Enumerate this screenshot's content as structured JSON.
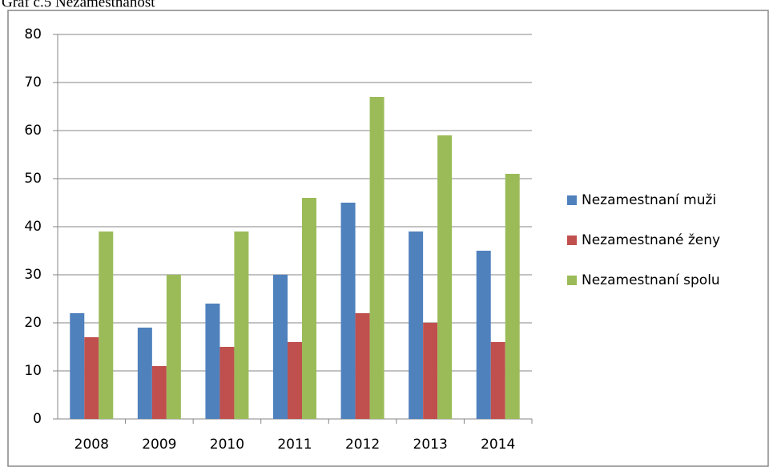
{
  "chart_data": {
    "type": "bar",
    "title": "Graf č.5 Nezamestnanosť",
    "categories": [
      "2008",
      "2009",
      "2010",
      "2011",
      "2012",
      "2013",
      "2014"
    ],
    "series": [
      {
        "name": "Nezamestnaní muži",
        "color": "#4f81bd",
        "values": [
          22,
          19,
          24,
          30,
          45,
          39,
          35
        ]
      },
      {
        "name": "Nezamestnané ženy",
        "color": "#c0504d",
        "values": [
          17,
          11,
          15,
          16,
          22,
          20,
          16
        ]
      },
      {
        "name": "Nezamestnaní spolu",
        "color": "#9bbb59",
        "values": [
          39,
          30,
          39,
          46,
          67,
          59,
          51
        ]
      }
    ],
    "ylim": [
      0,
      80
    ],
    "yticks": [
      0,
      10,
      20,
      30,
      40,
      50,
      60,
      70,
      80
    ],
    "grid": true,
    "legend": "right"
  }
}
